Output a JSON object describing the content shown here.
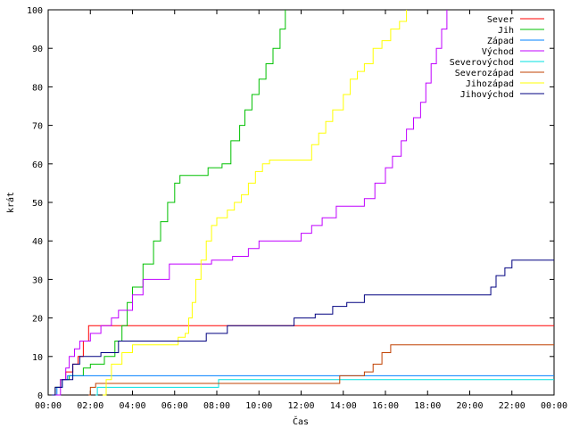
{
  "chart_data": {
    "type": "line",
    "xlabel": "Čas",
    "ylabel": "krát",
    "xlim": [
      "00:00",
      "00:00"
    ],
    "ylim": [
      0,
      100
    ],
    "x_ticks": [
      "00:00",
      "02:00",
      "04:00",
      "06:00",
      "08:00",
      "10:00",
      "12:00",
      "14:00",
      "16:00",
      "18:00",
      "20:00",
      "22:00",
      "00:00"
    ],
    "y_ticks": [
      "0",
      "10",
      "20",
      "30",
      "40",
      "50",
      "60",
      "70",
      "80",
      "90",
      "100"
    ],
    "grid": false,
    "legend_position": "top-right",
    "series": [
      {
        "name": "Sever",
        "color": "#ff0000",
        "points": [
          [
            "00:10",
            0
          ],
          [
            "00:20",
            2
          ],
          [
            "00:35",
            4
          ],
          [
            "00:50",
            6
          ],
          [
            "01:10",
            8
          ],
          [
            "01:25",
            10
          ],
          [
            "01:40",
            14
          ],
          [
            "01:55",
            18
          ],
          [
            "24:00",
            18
          ]
        ]
      },
      {
        "name": "Jih",
        "color": "#00c000",
        "points": [
          [
            "00:10",
            0
          ],
          [
            "00:20",
            2
          ],
          [
            "00:35",
            4
          ],
          [
            "01:00",
            5
          ],
          [
            "01:40",
            7
          ],
          [
            "02:00",
            8
          ],
          [
            "02:40",
            10
          ],
          [
            "03:10",
            14
          ],
          [
            "03:30",
            18
          ],
          [
            "03:45",
            24
          ],
          [
            "04:00",
            28
          ],
          [
            "04:30",
            34
          ],
          [
            "05:00",
            40
          ],
          [
            "05:20",
            45
          ],
          [
            "05:40",
            50
          ],
          [
            "06:00",
            55
          ],
          [
            "06:15",
            57
          ],
          [
            "07:20",
            57
          ],
          [
            "07:35",
            59
          ],
          [
            "08:15",
            60
          ],
          [
            "08:40",
            66
          ],
          [
            "09:05",
            70
          ],
          [
            "09:20",
            74
          ],
          [
            "09:40",
            78
          ],
          [
            "10:00",
            82
          ],
          [
            "10:20",
            86
          ],
          [
            "10:40",
            90
          ],
          [
            "11:00",
            95
          ],
          [
            "11:15",
            100
          ]
        ]
      },
      {
        "name": "Západ",
        "color": "#0080ff",
        "points": [
          [
            "00:15",
            0
          ],
          [
            "00:25",
            2
          ],
          [
            "00:40",
            4
          ],
          [
            "00:55",
            5
          ],
          [
            "24:00",
            5
          ]
        ]
      },
      {
        "name": "Východ",
        "color": "#c000ff",
        "points": [
          [
            "00:20",
            0
          ],
          [
            "00:35",
            4
          ],
          [
            "00:50",
            7
          ],
          [
            "01:00",
            10
          ],
          [
            "01:15",
            12
          ],
          [
            "01:30",
            14
          ],
          [
            "02:00",
            16
          ],
          [
            "02:30",
            18
          ],
          [
            "03:00",
            20
          ],
          [
            "03:20",
            22
          ],
          [
            "04:00",
            26
          ],
          [
            "04:30",
            30
          ],
          [
            "05:30",
            30
          ],
          [
            "05:45",
            34
          ],
          [
            "07:30",
            34
          ],
          [
            "07:45",
            35
          ],
          [
            "08:45",
            36
          ],
          [
            "09:30",
            38
          ],
          [
            "10:00",
            40
          ],
          [
            "11:30",
            40
          ],
          [
            "12:00",
            42
          ],
          [
            "12:30",
            44
          ],
          [
            "13:00",
            46
          ],
          [
            "13:40",
            49
          ],
          [
            "14:30",
            49
          ],
          [
            "15:00",
            51
          ],
          [
            "15:30",
            55
          ],
          [
            "16:00",
            59
          ],
          [
            "16:20",
            62
          ],
          [
            "16:45",
            66
          ],
          [
            "17:00",
            69
          ],
          [
            "17:20",
            72
          ],
          [
            "17:40",
            76
          ],
          [
            "17:55",
            81
          ],
          [
            "18:10",
            86
          ],
          [
            "18:25",
            90
          ],
          [
            "18:40",
            95
          ],
          [
            "18:55",
            100
          ]
        ]
      },
      {
        "name": "Severovýchod",
        "color": "#00e0e0",
        "points": [
          [
            "02:15",
            0
          ],
          [
            "02:20",
            2
          ],
          [
            "07:55",
            2
          ],
          [
            "08:05",
            4
          ],
          [
            "24:00",
            4
          ]
        ]
      },
      {
        "name": "Severozápad",
        "color": "#c04000",
        "points": [
          [
            "01:55",
            0
          ],
          [
            "02:00",
            2
          ],
          [
            "02:15",
            3
          ],
          [
            "13:40",
            3
          ],
          [
            "13:50",
            5
          ],
          [
            "15:00",
            6
          ],
          [
            "15:25",
            8
          ],
          [
            "15:50",
            11
          ],
          [
            "16:15",
            13
          ],
          [
            "24:00",
            13
          ]
        ]
      },
      {
        "name": "Jihozápad",
        "color": "#ffff00",
        "points": [
          [
            "02:35",
            0
          ],
          [
            "02:45",
            4
          ],
          [
            "03:00",
            8
          ],
          [
            "03:30",
            11
          ],
          [
            "04:00",
            13
          ],
          [
            "05:10",
            13
          ],
          [
            "05:30",
            13
          ],
          [
            "06:10",
            15
          ],
          [
            "06:30",
            16
          ],
          [
            "06:40",
            20
          ],
          [
            "06:50",
            24
          ],
          [
            "07:00",
            30
          ],
          [
            "07:15",
            35
          ],
          [
            "07:30",
            40
          ],
          [
            "07:45",
            44
          ],
          [
            "08:00",
            46
          ],
          [
            "08:30",
            48
          ],
          [
            "08:50",
            50
          ],
          [
            "09:10",
            52
          ],
          [
            "09:30",
            55
          ],
          [
            "09:50",
            58
          ],
          [
            "10:10",
            60
          ],
          [
            "10:30",
            61
          ],
          [
            "12:10",
            61
          ],
          [
            "12:30",
            65
          ],
          [
            "12:50",
            68
          ],
          [
            "13:10",
            71
          ],
          [
            "13:30",
            74
          ],
          [
            "14:00",
            78
          ],
          [
            "14:20",
            82
          ],
          [
            "14:40",
            84
          ],
          [
            "15:00",
            86
          ],
          [
            "15:25",
            90
          ],
          [
            "15:50",
            92
          ],
          [
            "16:15",
            95
          ],
          [
            "16:40",
            97
          ],
          [
            "17:00",
            100
          ]
        ]
      },
      {
        "name": "Jihovýchod",
        "color": "#000080",
        "points": [
          [
            "00:10",
            0
          ],
          [
            "00:20",
            2
          ],
          [
            "00:40",
            4
          ],
          [
            "01:10",
            8
          ],
          [
            "01:30",
            10
          ],
          [
            "02:30",
            11
          ],
          [
            "03:20",
            14
          ],
          [
            "06:00",
            14
          ],
          [
            "07:30",
            16
          ],
          [
            "08:30",
            18
          ],
          [
            "11:30",
            18
          ],
          [
            "11:40",
            20
          ],
          [
            "12:40",
            21
          ],
          [
            "13:30",
            23
          ],
          [
            "14:10",
            24
          ],
          [
            "15:00",
            26
          ],
          [
            "20:45",
            26
          ],
          [
            "21:00",
            28
          ],
          [
            "21:15",
            31
          ],
          [
            "21:40",
            33
          ],
          [
            "22:00",
            35
          ],
          [
            "24:00",
            35
          ]
        ]
      }
    ]
  }
}
